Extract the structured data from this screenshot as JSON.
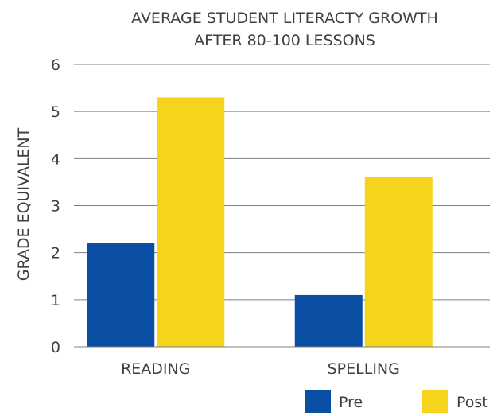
{
  "chart_data": {
    "type": "bar",
    "title_lines": [
      "AVERAGE STUDENT LITERACTY GROWTH",
      "AFTER 80-100 LESSONS"
    ],
    "xlabel": "",
    "ylabel": "GRADE EQUIVALENT",
    "categories": [
      "READING",
      "SPELLING"
    ],
    "series": [
      {
        "name": "Pre",
        "values": [
          2.2,
          1.1
        ],
        "color": "#0a4fa3"
      },
      {
        "name": "Post",
        "values": [
          5.3,
          3.6
        ],
        "color": "#f6d41c"
      }
    ],
    "ylim": [
      0,
      6
    ],
    "yticks": [
      "0",
      "1",
      "2",
      "3",
      "4",
      "5",
      "6"
    ],
    "grid": true,
    "legend_position": "bottom-right"
  }
}
